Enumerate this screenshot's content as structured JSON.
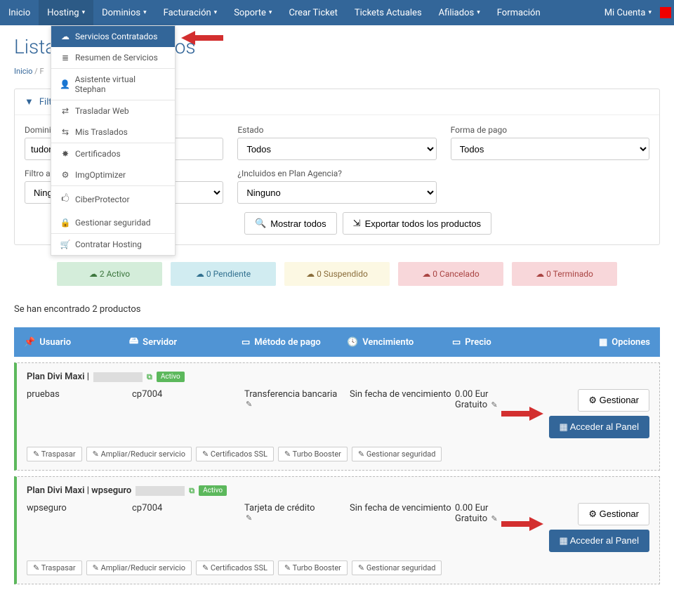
{
  "nav": {
    "items": [
      "Inicio",
      "Hosting",
      "Dominios",
      "Facturación",
      "Soporte",
      "Crear Ticket",
      "Tickets Actuales",
      "Afiliados",
      "Formación"
    ],
    "right": "Mi Cuenta",
    "dropdown_caret_indexes": [
      1,
      2,
      3,
      4,
      7
    ],
    "right_has_caret": true
  },
  "dropdown": {
    "items": [
      {
        "icon": "☁",
        "label": "Servicios Contratados",
        "hl": true
      },
      {
        "icon": "≣",
        "label": "Resumen de Servicios"
      },
      {
        "divider": true
      },
      {
        "icon": "👤",
        "label": "Asistente virtual Stephan"
      },
      {
        "divider": true
      },
      {
        "icon": "⇄",
        "label": "Trasladar Web"
      },
      {
        "icon": "⇆",
        "label": "Mis Traslados"
      },
      {
        "divider": true
      },
      {
        "icon": "✸",
        "label": "Certificados"
      },
      {
        "icon": "⚙",
        "label": "ImgOptimizer"
      },
      {
        "divider": true
      },
      {
        "icon": "🖒",
        "label": "CiberProtector"
      },
      {
        "icon": "🔒",
        "label": "Gestionar seguridad"
      },
      {
        "divider": true
      },
      {
        "icon": "🛒",
        "label": "Contratar Hosting"
      }
    ]
  },
  "page": {
    "title": "Listado de productos"
  },
  "breadcrumb": {
    "home": "Inicio",
    "sep": " / ",
    "current": "F"
  },
  "filters": {
    "header": "Filtros",
    "domain_label": "Dominio",
    "domain_value": "tudom",
    "state_label": "Estado",
    "state_value": "Todos",
    "payment_label": "Forma de pago",
    "payment_value": "Todos",
    "adv_label": "Filtro avanzado",
    "adv_value": "Ningu",
    "agency_label": "¿Incluidos en Plan Agencia?",
    "agency_value": "Ninguno",
    "show_all": "Mostrar todos",
    "export_all": "Exportar todos los productos"
  },
  "status": {
    "active": "2 Activo",
    "pending": "0 Pendiente",
    "suspended": "0 Suspendido",
    "cancelled": "0 Cancelado",
    "terminated": "0 Terminado"
  },
  "results": {
    "count_text": "Se han encontrado 2 productos"
  },
  "table": {
    "headers": {
      "user": "Usuario",
      "server": "Servidor",
      "payment": "Método de pago",
      "due": "Vencimiento",
      "price": "Precio",
      "options": "Opciones"
    }
  },
  "products": [
    {
      "title_prefix": "Plan Divi Maxi | ",
      "title_suffix": "",
      "redacted": true,
      "badge": "Activo",
      "user": "pruebas",
      "server": "cp7004",
      "payment": "Transferencia bancaria",
      "due": "Sin fecha de vencimiento",
      "price": "0.00 Eur",
      "price_sub": "Gratuito",
      "manage": "Gestionar",
      "panel": "Acceder al Panel",
      "actions": [
        "Traspasar",
        "Ampliar/Reducir servicio",
        "Certificados SSL",
        "Turbo Booster",
        "Gestionar seguridad"
      ]
    },
    {
      "title_prefix": "Plan Divi Maxi | wpseguro",
      "title_suffix": "",
      "redacted": true,
      "badge": "Activo",
      "user": "wpseguro",
      "server": "cp7004",
      "payment": "Tarjeta de crédito",
      "due": "Sin fecha de vencimiento",
      "price": "0.00 Eur",
      "price_sub": "Gratuito",
      "manage": "Gestionar",
      "panel": "Acceder al Panel",
      "actions": [
        "Traspasar",
        "Ampliar/Reducir servicio",
        "Certificados SSL",
        "Turbo Booster",
        "Gestionar seguridad"
      ]
    }
  ],
  "colors": {
    "navbar": "#336699",
    "accent": "#5094d4",
    "success": "#5cb85c",
    "arrow": "#d32f2f"
  }
}
